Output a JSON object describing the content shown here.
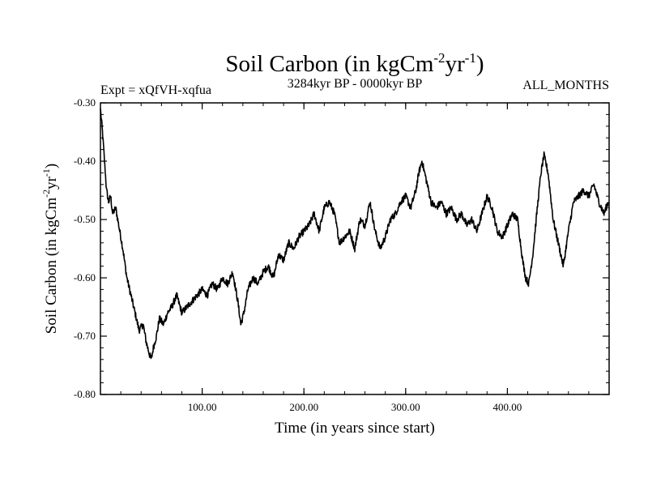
{
  "chart_data": {
    "type": "line",
    "title": {
      "main": "Soil Carbon (in kgCm",
      "sup1": "-2",
      "mid": "yr",
      "sup2": "-1",
      "end": ")"
    },
    "subtitle_left": "Expt = xQfVH-xqfua",
    "subtitle_center": "3284kyr BP - 0000kyr BP",
    "subtitle_right": "ALL_MONTHS",
    "xlabel": "Time (in years since start)",
    "ylabel": {
      "main": "Soil Carbon (in kgCm",
      "sup1": "-2",
      "mid": "yr",
      "sup2": "-1",
      "end": ")"
    },
    "xlim": [
      0,
      500
    ],
    "ylim": [
      -0.8,
      -0.3
    ],
    "x_ticks": [
      100,
      200,
      300,
      400
    ],
    "x_tick_labels": [
      "100.00",
      "200.00",
      "300.00",
      "400.00"
    ],
    "y_ticks": [
      -0.3,
      -0.4,
      -0.5,
      -0.6,
      -0.7,
      -0.8
    ],
    "y_tick_labels": [
      "-0.30",
      "-0.40",
      "-0.50",
      "-0.60",
      "-0.70",
      "-0.80"
    ],
    "series": [
      {
        "name": "Soil Carbon",
        "color": "#000000",
        "x": [
          0,
          2,
          4,
          6,
          8,
          10,
          12,
          15,
          18,
          22,
          26,
          30,
          34,
          38,
          42,
          45,
          48,
          50,
          52,
          55,
          58,
          62,
          66,
          70,
          75,
          80,
          85,
          90,
          95,
          100,
          105,
          110,
          115,
          120,
          125,
          130,
          135,
          138,
          141,
          145,
          150,
          155,
          160,
          165,
          170,
          175,
          180,
          185,
          190,
          195,
          200,
          205,
          210,
          215,
          220,
          225,
          230,
          235,
          240,
          245,
          250,
          255,
          260,
          265,
          270,
          275,
          280,
          285,
          290,
          295,
          300,
          305,
          310,
          313,
          316,
          320,
          325,
          330,
          335,
          340,
          345,
          350,
          355,
          360,
          365,
          370,
          375,
          380,
          385,
          390,
          395,
          400,
          405,
          410,
          415,
          418,
          421,
          425,
          430,
          433,
          436,
          440,
          445,
          450,
          455,
          460,
          465,
          470,
          475,
          480,
          485,
          490,
          495,
          499
        ],
        "y": [
          -0.31,
          -0.35,
          -0.4,
          -0.45,
          -0.47,
          -0.46,
          -0.49,
          -0.48,
          -0.51,
          -0.55,
          -0.6,
          -0.63,
          -0.66,
          -0.69,
          -0.68,
          -0.71,
          -0.73,
          -0.74,
          -0.72,
          -0.7,
          -0.67,
          -0.68,
          -0.66,
          -0.65,
          -0.63,
          -0.66,
          -0.65,
          -0.64,
          -0.63,
          -0.62,
          -0.63,
          -0.61,
          -0.62,
          -0.6,
          -0.61,
          -0.59,
          -0.64,
          -0.68,
          -0.66,
          -0.62,
          -0.6,
          -0.61,
          -0.59,
          -0.58,
          -0.6,
          -0.56,
          -0.57,
          -0.54,
          -0.55,
          -0.53,
          -0.52,
          -0.51,
          -0.49,
          -0.52,
          -0.48,
          -0.47,
          -0.49,
          -0.54,
          -0.53,
          -0.52,
          -0.55,
          -0.5,
          -0.51,
          -0.47,
          -0.52,
          -0.55,
          -0.53,
          -0.5,
          -0.49,
          -0.47,
          -0.46,
          -0.48,
          -0.45,
          -0.42,
          -0.4,
          -0.43,
          -0.47,
          -0.48,
          -0.47,
          -0.49,
          -0.48,
          -0.5,
          -0.49,
          -0.51,
          -0.5,
          -0.52,
          -0.49,
          -0.46,
          -0.48,
          -0.52,
          -0.53,
          -0.51,
          -0.49,
          -0.5,
          -0.57,
          -0.6,
          -0.61,
          -0.56,
          -0.47,
          -0.42,
          -0.39,
          -0.42,
          -0.5,
          -0.54,
          -0.58,
          -0.52,
          -0.47,
          -0.46,
          -0.45,
          -0.46,
          -0.44,
          -0.47,
          -0.49,
          -0.47
        ]
      }
    ]
  }
}
